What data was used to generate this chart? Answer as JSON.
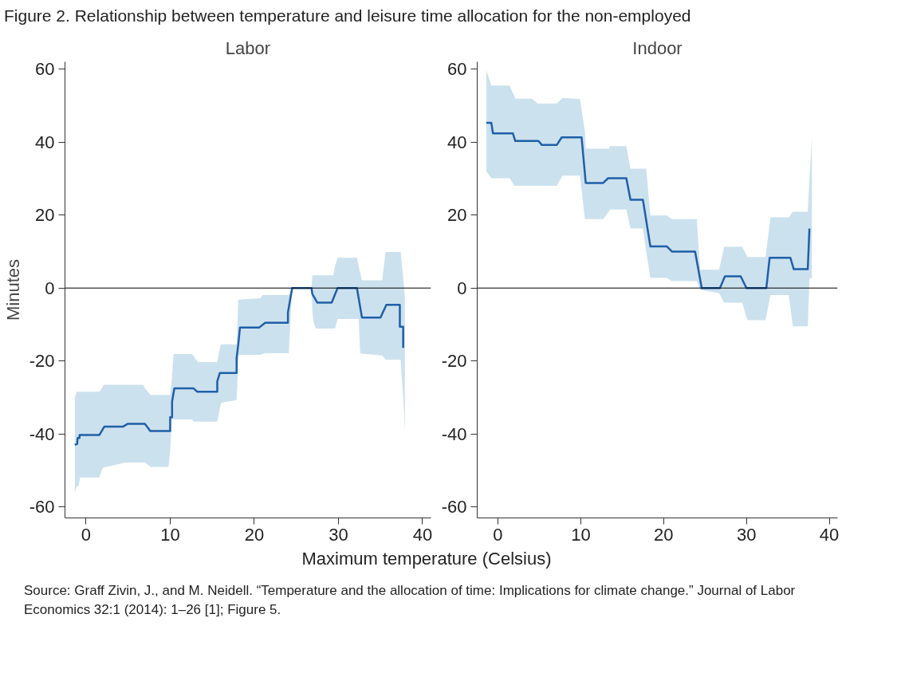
{
  "chart_data": [
    {
      "type": "line",
      "title": "Labor",
      "ylabel": "Minutes",
      "xlabel": "Maximum temperature (Celsius)",
      "annotations": [
        "Figure 2. Relationship between temperature and leisure time allocation for the non-employed",
        "Source: Graff Zivin, J., and M. Neidell. “Temperature and the allocation of time: Implications for climate change.” Journal of Labor Economics 32:1 (2014): 1–26 [1]; Figure 5."
      ],
      "xlim": [
        -2.5,
        41
      ],
      "xticks": [
        0,
        10,
        20,
        30,
        40
      ],
      "ylim": [
        -63,
        62
      ],
      "yticks": [
        -60,
        -40,
        -20,
        0,
        20,
        40,
        60
      ],
      "grid": false,
      "ref_lines": [
        {
          "axis": "y",
          "value": 0,
          "color": "#000000"
        }
      ],
      "series": [
        {
          "type": "area",
          "color": "#cce1ee",
          "x": [
            -1.33,
            -1.1,
            -0.9,
            -0.7,
            1.58,
            1.9,
            2.1,
            4.7,
            6.8,
            7.0,
            7.7,
            9.8,
            10.0,
            10.2,
            10.4,
            12.6,
            12.8,
            13.3,
            15.6,
            16.0,
            16.1,
            17.9,
            18.1,
            18.2,
            20.7,
            21.0,
            21.3,
            24.1,
            24.5,
            26.8,
            26.9,
            27.0,
            27.3,
            29.4,
            29.6,
            29.9,
            32.2,
            32.4,
            32.6,
            32.8,
            35.2,
            35.6,
            37.3,
            37.4,
            37.7,
            37.9
          ],
          "values": [
            null,
            null,
            null,
            null,
            null,
            null,
            null,
            null,
            null,
            null,
            null,
            null,
            null,
            null,
            null,
            null,
            null,
            null,
            null,
            null,
            null,
            null,
            null,
            null,
            null,
            null,
            null,
            null,
            null,
            null,
            null,
            null,
            null,
            null,
            null,
            null,
            null,
            null,
            null,
            null,
            null,
            null,
            null,
            null,
            null,
            null
          ],
          "upper": [
            -30.1,
            -28.4,
            -28.4,
            -28.4,
            -28.4,
            -27.5,
            -26.5,
            -26.5,
            -26.5,
            -27.5,
            -29.3,
            -29.3,
            -29.3,
            -25,
            -18.1,
            -18.1,
            -18.7,
            -20.3,
            -20.3,
            -15.4,
            -15.4,
            -15.4,
            -3.3,
            -3.2,
            -2.8,
            -1.9,
            -1.9,
            -1.9,
            0,
            0,
            3.5,
            3.5,
            3.5,
            3.5,
            6,
            8.3,
            8.3,
            6,
            4,
            2.1,
            2.1,
            9.9,
            9.9,
            9.9,
            3,
            -2.5
          ],
          "lower": [
            -56,
            -54.3,
            -54.3,
            -51.9,
            -51.9,
            -49.6,
            -49.2,
            -47.8,
            -47.8,
            -47.8,
            -49,
            -49,
            -45,
            -36,
            -36,
            -36,
            -36.6,
            -36.6,
            -36.6,
            -32,
            -31.4,
            -30.7,
            -20,
            -18.3,
            -18.3,
            -18.1,
            -17.9,
            -17.9,
            0,
            0,
            -6,
            -8.8,
            -11.1,
            -11.1,
            -11.1,
            -8.5,
            -8.5,
            -8.5,
            -18,
            -18,
            -18.5,
            -19.6,
            -19.6,
            -19.6,
            -30,
            -39.2
          ]
        },
        {
          "type": "line",
          "color": "#1f5fa8",
          "x": [
            -1.33,
            -1.05,
            -1.0,
            -0.77,
            -0.77,
            1.58,
            2.17,
            4.38,
            4.97,
            7.0,
            7.64,
            10.0,
            10.0,
            10.23,
            10.23,
            10.5,
            12.8,
            13.2,
            15.6,
            15.6,
            15.9,
            17.9,
            17.9,
            18.1,
            18.3,
            20.6,
            21.3,
            24.0,
            24.0,
            24.5,
            26.8,
            26.9,
            27.5,
            29.2,
            29.9,
            32.2,
            32.8,
            35.0,
            35.7,
            37.3,
            37.3,
            37.7,
            37.7
          ],
          "values": [
            -43.0,
            -42.7,
            -41.1,
            -41.1,
            -40.3,
            -40.3,
            -38.0,
            -38.0,
            -37.2,
            -37.2,
            -39.2,
            -39.2,
            -35.4,
            -35.4,
            -31.1,
            -27.5,
            -27.5,
            -28.4,
            -28.4,
            -25.6,
            -23.3,
            -23.3,
            -19.1,
            -15.4,
            -10.8,
            -10.8,
            -9.5,
            -9.5,
            -6.7,
            0,
            0,
            -1.6,
            -4.0,
            -4.0,
            0,
            0,
            -8.1,
            -8.1,
            -4.6,
            -4.6,
            -10.6,
            -10.6,
            -16.4
          ]
        }
      ]
    },
    {
      "type": "line",
      "title": "Indoor",
      "xlim": [
        -2.5,
        41
      ],
      "xticks": [
        0,
        10,
        20,
        30,
        40
      ],
      "ylim": [
        -63,
        62
      ],
      "yticks": [
        -60,
        -40,
        -20,
        0,
        20,
        40,
        60
      ],
      "grid": false,
      "ref_lines": [
        {
          "axis": "y",
          "value": 0,
          "color": "#000000"
        }
      ],
      "series": [
        {
          "type": "area",
          "color": "#cce1ee",
          "x": [
            -1.4,
            -0.8,
            1.4,
            2.0,
            2.1,
            4.1,
            4.8,
            7.1,
            7.8,
            9.9,
            10.5,
            10.6,
            12.7,
            13.4,
            13.5,
            15.5,
            16.0,
            17.5,
            17.9,
            18.4,
            20.4,
            21.0,
            24.0,
            24.4,
            26.7,
            27.3,
            29.5,
            30.1,
            32.3,
            32.9,
            35.1,
            35.6,
            37.4,
            37.6,
            37.9
          ],
          "values": [
            null,
            null,
            null,
            null,
            null,
            null,
            null,
            null,
            null,
            null,
            null,
            null,
            null,
            null,
            null,
            null,
            null,
            null,
            null,
            null,
            null,
            null,
            null,
            null,
            null,
            null,
            null,
            null,
            null,
            null,
            null,
            null,
            null,
            null,
            null
          ],
          "upper": [
            59.7,
            55.5,
            55.5,
            52.5,
            51.9,
            51.9,
            50.6,
            50.6,
            52.1,
            51.8,
            43,
            38.2,
            38.2,
            38.2,
            38.9,
            38.9,
            32.7,
            32.7,
            32.7,
            19.9,
            19.9,
            18.9,
            18.9,
            5,
            5,
            11.3,
            11.3,
            8.5,
            8.5,
            19.4,
            19.4,
            20.9,
            20.9,
            30,
            41.3
          ],
          "lower": [
            32,
            30.1,
            30.1,
            28,
            28,
            28,
            28,
            28,
            30.8,
            30.8,
            18.9,
            18.9,
            18.9,
            21,
            21.5,
            21.5,
            16.3,
            16.3,
            10,
            2.8,
            2.8,
            1.9,
            1.9,
            -0.5,
            -1.4,
            -4,
            -4,
            -8.8,
            -8.8,
            -1.9,
            -1.9,
            -10.5,
            -10.5,
            2.5,
            2.8
          ]
        },
        {
          "type": "line",
          "color": "#1f5fa8",
          "x": [
            -1.4,
            -0.8,
            -0.6,
            1.8,
            2.1,
            4.9,
            5.3,
            7.1,
            7.7,
            10.1,
            10.6,
            12.7,
            13.3,
            15.5,
            16.0,
            17.5,
            18.4,
            20.4,
            21.0,
            23.8,
            24.6,
            26.8,
            27.4,
            29.3,
            30.0,
            32.4,
            32.8,
            35.3,
            35.7,
            37.4,
            37.6
          ],
          "values": [
            45.3,
            45.3,
            42.4,
            42.4,
            40.3,
            40.3,
            39.2,
            39.2,
            41.3,
            41.3,
            28.8,
            28.8,
            30.1,
            30.1,
            24.2,
            24.2,
            11.4,
            11.4,
            10,
            10,
            0,
            0,
            3.2,
            3.2,
            0,
            0,
            8.3,
            8.3,
            5.2,
            5.2,
            16.3
          ]
        }
      ]
    }
  ]
}
